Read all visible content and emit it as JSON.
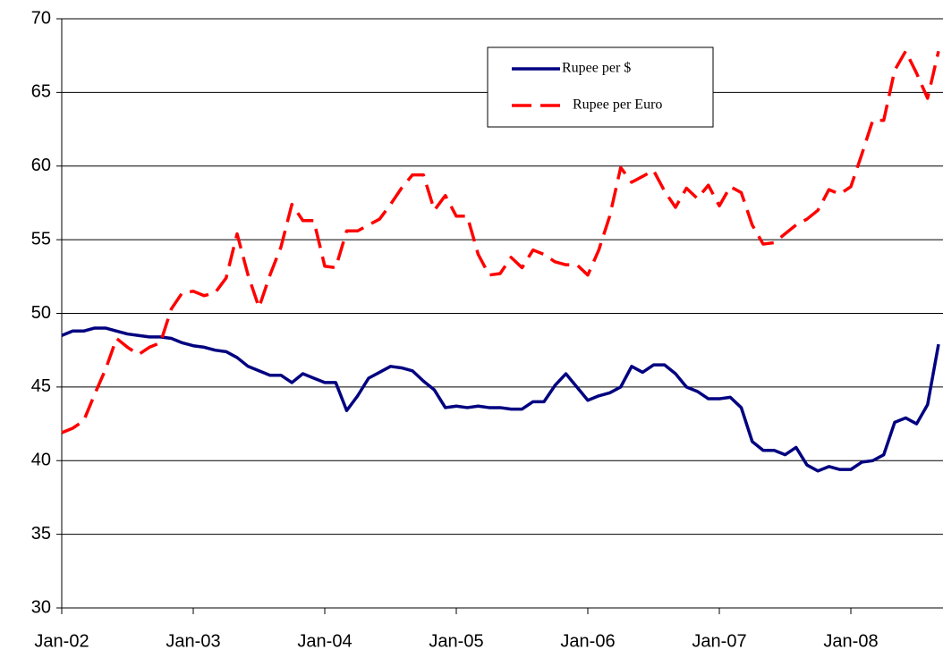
{
  "chart_data": {
    "type": "line",
    "categories": [
      "Jan-02",
      null,
      null,
      null,
      null,
      null,
      null,
      null,
      null,
      null,
      null,
      null,
      "Jan-03",
      null,
      null,
      null,
      null,
      null,
      null,
      null,
      null,
      null,
      null,
      null,
      "Jan-04",
      null,
      null,
      null,
      null,
      null,
      null,
      null,
      null,
      null,
      null,
      null,
      "Jan-05",
      null,
      null,
      null,
      null,
      null,
      null,
      null,
      null,
      null,
      null,
      null,
      "Jan-06",
      null,
      null,
      null,
      null,
      null,
      null,
      null,
      null,
      null,
      null,
      null,
      "Jan-07",
      null,
      null,
      null,
      null,
      null,
      null,
      null,
      null,
      null,
      null,
      null,
      "Jan-08",
      null,
      null,
      null,
      null,
      null,
      null,
      null,
      null
    ],
    "series": [
      {
        "name": "Rupee per $",
        "color": "#000080",
        "dashed": false,
        "values": [
          48.5,
          48.8,
          48.8,
          49.0,
          49.0,
          48.8,
          48.6,
          48.5,
          48.4,
          48.4,
          48.3,
          48.0,
          47.8,
          47.7,
          47.5,
          47.4,
          47.0,
          46.4,
          46.1,
          45.8,
          45.8,
          45.3,
          45.9,
          45.6,
          45.3,
          45.3,
          43.4,
          44.4,
          45.6,
          46.0,
          46.4,
          46.3,
          46.1,
          45.4,
          44.8,
          43.6,
          43.7,
          43.6,
          43.7,
          43.6,
          43.6,
          43.5,
          43.5,
          44.0,
          44.0,
          45.1,
          45.9,
          45.0,
          44.1,
          44.4,
          44.6,
          45.0,
          46.4,
          46.0,
          46.5,
          46.5,
          45.9,
          45.0,
          44.7,
          44.2,
          44.2,
          44.3,
          43.6,
          41.3,
          40.7,
          40.7,
          40.4,
          40.9,
          39.7,
          39.3,
          39.6,
          39.4,
          39.4,
          39.9,
          40.0,
          40.4,
          42.6,
          42.9,
          42.5,
          43.8,
          47.9
        ]
      },
      {
        "name": "Rupee per Euro",
        "color": "#ff0000",
        "dashed": true,
        "values": [
          41.9,
          42.2,
          42.7,
          44.5,
          46.2,
          48.3,
          47.7,
          47.2,
          47.7,
          48.0,
          50.3,
          51.4,
          51.5,
          51.2,
          51.4,
          52.4,
          55.4,
          52.6,
          50.4,
          52.6,
          54.5,
          57.4,
          56.3,
          56.3,
          53.2,
          53.1,
          55.6,
          55.6,
          56.0,
          56.4,
          57.4,
          58.5,
          59.4,
          59.4,
          57.0,
          58.0,
          56.6,
          56.6,
          54.0,
          52.6,
          52.7,
          53.8,
          53.1,
          54.3,
          54.0,
          53.5,
          53.3,
          53.3,
          52.6,
          54.3,
          56.6,
          59.9,
          58.9,
          59.3,
          59.7,
          58.3,
          57.2,
          58.5,
          57.8,
          58.7,
          57.3,
          58.6,
          58.2,
          56.0,
          54.7,
          54.8,
          55.4,
          56.0,
          56.4,
          57.0,
          58.4,
          58.1,
          58.6,
          60.8,
          63.1,
          63.1,
          66.5,
          67.8,
          66.3,
          64.6,
          67.8
        ]
      }
    ],
    "ylim": [
      30,
      70
    ],
    "yticks": [
      30,
      35,
      40,
      45,
      50,
      55,
      60,
      65,
      70
    ],
    "grid": true
  }
}
